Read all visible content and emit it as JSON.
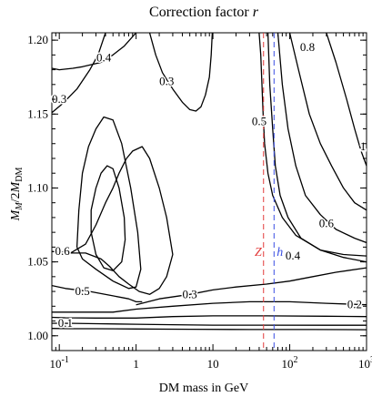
{
  "chart_data": {
    "type": "contour",
    "title_main": "Correction factor ",
    "title_var": "r",
    "xlabel": "DM mass in GeV",
    "ylabel_main": "M",
    "ylabel_sub1": "M",
    "ylabel_mid": "/2",
    "ylabel_main2": "M",
    "ylabel_sub2": "DM",
    "x_scale": "log",
    "xlim": [
      0.08,
      1000
    ],
    "ylim": [
      0.99,
      1.205
    ],
    "x_ticks": [
      {
        "value": 0.1,
        "base": "10",
        "exp": "-1"
      },
      {
        "value": 1,
        "base": "1",
        "exp": ""
      },
      {
        "value": 10,
        "base": "10",
        "exp": ""
      },
      {
        "value": 100,
        "base": "10",
        "exp": "2"
      },
      {
        "value": 1000,
        "base": "10",
        "exp": "3"
      }
    ],
    "y_ticks": [
      "1.00",
      "1.05",
      "1.10",
      "1.15",
      "1.20"
    ],
    "grid": false,
    "contours": [
      {
        "level": "0.1",
        "points": [
          [
            0.08,
            1.005
          ],
          [
            0.15,
            1.0048
          ],
          [
            0.3,
            1.0048
          ],
          [
            1,
            1.0046
          ],
          [
            5,
            1.0044
          ],
          [
            30,
            1.0042
          ],
          [
            200,
            1.0042
          ],
          [
            1000,
            1.0041
          ]
        ]
      },
      {
        "level": "0.1",
        "points": [
          [
            0.08,
            1.0085
          ],
          [
            0.15,
            1.0084
          ],
          [
            0.3,
            1.0082
          ],
          [
            1,
            1.0078
          ],
          [
            3,
            1.0075
          ],
          [
            10,
            1.0072
          ],
          [
            50,
            1.0072
          ],
          [
            300,
            1.0071
          ],
          [
            1000,
            1.0071
          ]
        ]
      },
      {
        "level": "0.1",
        "points": [
          [
            0.08,
            1.0125
          ],
          [
            0.12,
            1.0122
          ],
          [
            0.3,
            1.012
          ],
          [
            1,
            1.012
          ],
          [
            3,
            1.013
          ],
          [
            10,
            1.0135
          ],
          [
            50,
            1.0135
          ],
          [
            300,
            1.0132
          ],
          [
            1000,
            1.013
          ]
        ]
      },
      {
        "level": "0.2",
        "points": [
          [
            0.08,
            1.016
          ],
          [
            0.2,
            1.016
          ],
          [
            0.5,
            1.016
          ],
          [
            1,
            1.018
          ],
          [
            3,
            1.02
          ],
          [
            10,
            1.022
          ],
          [
            30,
            1.023
          ],
          [
            100,
            1.023
          ],
          [
            300,
            1.022
          ],
          [
            1000,
            1.021
          ]
        ]
      },
      {
        "level": "0.3",
        "points": [
          [
            1,
            1.021
          ],
          [
            2,
            1.025
          ],
          [
            5,
            1.028
          ],
          [
            10,
            1.031
          ],
          [
            20,
            1.033
          ],
          [
            50,
            1.035
          ],
          [
            100,
            1.037
          ],
          [
            200,
            1.04
          ],
          [
            400,
            1.043
          ],
          [
            1000,
            1.046
          ]
        ]
      },
      {
        "level": "0.5",
        "points": [
          [
            0.08,
            1.034
          ],
          [
            0.12,
            1.032
          ],
          [
            0.25,
            1.03
          ],
          [
            0.5,
            1.027
          ],
          [
            0.8,
            1.025
          ],
          [
            1,
            1.023
          ],
          [
            1.2,
            1.023
          ]
        ]
      },
      {
        "level": "0.6",
        "points": [
          [
            0.08,
            1.057
          ],
          [
            0.14,
            1.056
          ],
          [
            0.22,
            1.062
          ],
          [
            0.3,
            1.075
          ],
          [
            0.4,
            1.09
          ],
          [
            0.5,
            1.1
          ],
          [
            0.6,
            1.11
          ],
          [
            0.75,
            1.12
          ],
          [
            0.9,
            1.125
          ],
          [
            1.2,
            1.128
          ],
          [
            1.5,
            1.12
          ],
          [
            2,
            1.1
          ],
          [
            2.5,
            1.08
          ],
          [
            3,
            1.055
          ],
          [
            2.5,
            1.04
          ],
          [
            2,
            1.032
          ],
          [
            1.5,
            1.028
          ],
          [
            1.1,
            1.03
          ],
          [
            0.8,
            1.035
          ],
          [
            0.6,
            1.04
          ],
          [
            0.45,
            1.047
          ],
          [
            0.35,
            1.052
          ],
          [
            0.22,
            1.056
          ],
          [
            0.14,
            1.056
          ],
          [
            0.08,
            1.057
          ]
        ]
      },
      {
        "level": "",
        "points": [
          [
            0.26,
            1.085
          ],
          [
            0.3,
            1.1
          ],
          [
            0.35,
            1.11
          ],
          [
            0.42,
            1.115
          ],
          [
            0.5,
            1.113
          ],
          [
            0.6,
            1.1
          ],
          [
            0.7,
            1.08
          ],
          [
            0.72,
            1.065
          ],
          [
            0.65,
            1.05
          ],
          [
            0.5,
            1.044
          ],
          [
            0.38,
            1.046
          ],
          [
            0.3,
            1.055
          ],
          [
            0.26,
            1.07
          ],
          [
            0.26,
            1.085
          ]
        ]
      },
      {
        "level": "",
        "points": [
          [
            0.17,
            1.06
          ],
          [
            0.18,
            1.085
          ],
          [
            0.2,
            1.11
          ],
          [
            0.24,
            1.128
          ],
          [
            0.3,
            1.14
          ],
          [
            0.38,
            1.148
          ],
          [
            0.5,
            1.146
          ],
          [
            0.65,
            1.13
          ],
          [
            0.85,
            1.1
          ],
          [
            1.05,
            1.07
          ],
          [
            1.15,
            1.045
          ],
          [
            1,
            1.033
          ],
          [
            0.8,
            1.032
          ],
          [
            0.5,
            1.037
          ],
          [
            0.3,
            1.045
          ],
          [
            0.2,
            1.052
          ],
          [
            0.17,
            1.06
          ]
        ]
      },
      {
        "level": "0.4",
        "points": [
          [
            0.08,
            1.181
          ],
          [
            0.1,
            1.18
          ],
          [
            0.15,
            1.181
          ],
          [
            0.2,
            1.182
          ],
          [
            0.35,
            1.185
          ],
          [
            0.5,
            1.19
          ],
          [
            0.7,
            1.196
          ],
          [
            1,
            1.205
          ]
        ]
      },
      {
        "level": "0.3",
        "points": [
          [
            0.08,
            1.151
          ],
          [
            0.11,
            1.157
          ],
          [
            0.17,
            1.167
          ],
          [
            0.25,
            1.18
          ],
          [
            0.32,
            1.19
          ],
          [
            0.4,
            1.205
          ]
        ]
      },
      {
        "level": "0.3",
        "points": [
          [
            1.5,
            1.205
          ],
          [
            1.8,
            1.19
          ],
          [
            2.2,
            1.178
          ],
          [
            3,
            1.167
          ],
          [
            4,
            1.158
          ],
          [
            5,
            1.153
          ],
          [
            6,
            1.152
          ],
          [
            7,
            1.155
          ],
          [
            8,
            1.163
          ],
          [
            9,
            1.175
          ],
          [
            9.5,
            1.19
          ],
          [
            9.8,
            1.205
          ]
        ]
      },
      {
        "level": "0.5",
        "points": [
          [
            40,
            1.205
          ],
          [
            42,
            1.19
          ],
          [
            43.5,
            1.17
          ],
          [
            45,
            1.15
          ],
          [
            47,
            1.13
          ],
          [
            52,
            1.11
          ],
          [
            60,
            1.095
          ],
          [
            80,
            1.08
          ],
          [
            120,
            1.068
          ],
          [
            250,
            1.058
          ],
          [
            500,
            1.053
          ],
          [
            1000,
            1.05
          ]
        ]
      },
      {
        "level": "0.4",
        "points": [
          [
            52,
            1.205
          ],
          [
            55,
            1.17
          ],
          [
            60,
            1.14
          ],
          [
            65,
            1.115
          ],
          [
            75,
            1.095
          ],
          [
            95,
            1.08
          ],
          [
            140,
            1.066
          ],
          [
            250,
            1.058
          ],
          [
            500,
            1.055
          ],
          [
            1000,
            1.054
          ]
        ]
      },
      {
        "level": "0.6",
        "points": [
          [
            70,
            1.205
          ],
          [
            80,
            1.17
          ],
          [
            95,
            1.14
          ],
          [
            120,
            1.115
          ],
          [
            160,
            1.095
          ],
          [
            250,
            1.082
          ],
          [
            400,
            1.072
          ],
          [
            700,
            1.066
          ],
          [
            1000,
            1.063
          ]
        ]
      },
      {
        "level": "0.8",
        "points": [
          [
            100,
            1.205
          ],
          [
            130,
            1.18
          ],
          [
            180,
            1.15
          ],
          [
            250,
            1.13
          ],
          [
            350,
            1.115
          ],
          [
            500,
            1.1
          ],
          [
            700,
            1.09
          ],
          [
            1000,
            1.085
          ]
        ]
      },
      {
        "level": "1",
        "points": [
          [
            300,
            1.205
          ],
          [
            400,
            1.185
          ],
          [
            550,
            1.16
          ],
          [
            700,
            1.14
          ],
          [
            850,
            1.125
          ],
          [
            1000,
            1.115
          ]
        ]
      }
    ],
    "contour_labels": [
      {
        "text": "0.1",
        "x": 0.12,
        "y": 1.0085
      },
      {
        "text": "0.2",
        "x": 700,
        "y": 1.021
      },
      {
        "text": "0.3",
        "x": 5,
        "y": 1.028
      },
      {
        "text": "0.5",
        "x": 0.2,
        "y": 1.03
      },
      {
        "text": "0.6",
        "x": 0.11,
        "y": 1.057
      },
      {
        "text": "0.4",
        "x": 0.38,
        "y": 1.188
      },
      {
        "text": "0.3",
        "x": 0.1,
        "y": 1.16
      },
      {
        "text": "0.3",
        "x": 2.5,
        "y": 1.172
      },
      {
        "text": "0.5",
        "x": 40,
        "y": 1.145
      },
      {
        "text": "0.8",
        "x": 170,
        "y": 1.195
      },
      {
        "text": "1",
        "x": 900,
        "y": 1.128
      },
      {
        "text": "0.6",
        "x": 300,
        "y": 1.076
      },
      {
        "text": "0.4",
        "x": 110,
        "y": 1.054
      }
    ],
    "markers": [
      {
        "label": "Z",
        "x": 45.6,
        "color": "#e23a3a"
      },
      {
        "label": "h",
        "x": 62.5,
        "color": "#3a4fe2"
      }
    ],
    "marker_label_y": 1.057
  }
}
